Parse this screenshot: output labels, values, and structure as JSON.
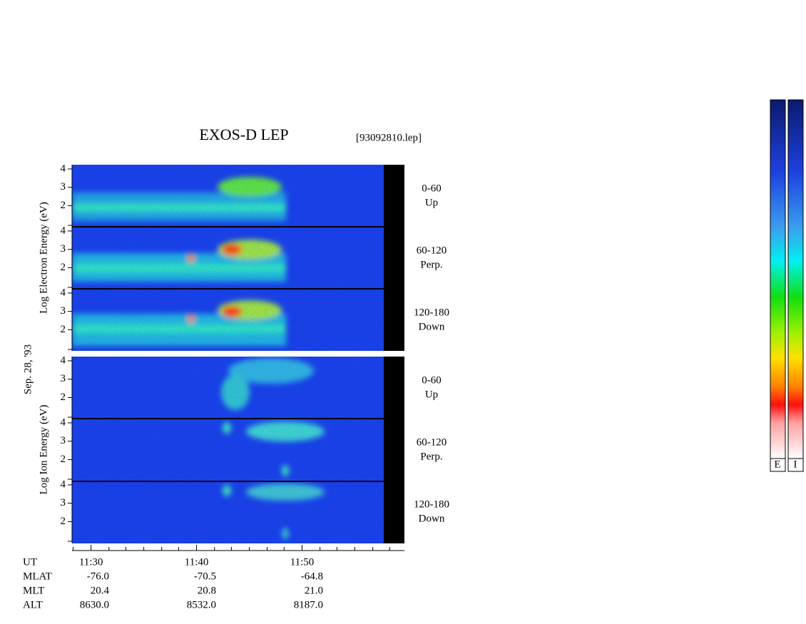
{
  "chart_data": {
    "type": "spectrogram",
    "title": "EXOS-D LEP",
    "subtitle": "[93092810.lep]",
    "date_label": "Sep. 28, '93",
    "groups": [
      {
        "ylabel": "Log  Electron  Energy (eV)",
        "panels": [
          {
            "range": "0-60",
            "direction": "Up"
          },
          {
            "range": "60-120",
            "direction": "Perp."
          },
          {
            "range": "120-180",
            "direction": "Down"
          }
        ]
      },
      {
        "ylabel": "Log  Ion  Energy (eV)",
        "panels": [
          {
            "range": "0-60",
            "direction": "Up"
          },
          {
            "range": "60-120",
            "direction": "Perp."
          },
          {
            "range": "120-180",
            "direction": "Down"
          }
        ]
      }
    ],
    "ylim": [
      0.85,
      4.23
    ],
    "yticks": [
      2,
      3,
      4
    ],
    "xlim": [
      688.2,
      719.7
    ],
    "xticks": [
      {
        "value": 690,
        "label": "11:30"
      },
      {
        "value": 700,
        "label": "11:40"
      },
      {
        "value": 710,
        "label": "11:50"
      }
    ],
    "xminorticks": [
      688.3,
      691.7,
      693.3,
      695,
      696.7,
      698.3,
      701.7,
      703.3,
      705,
      706.7,
      708.3,
      711.7,
      713.3,
      715,
      716.7,
      718.3
    ],
    "ephemeris_label": "UT",
    "ephemeris": [
      {
        "name": "MLAT",
        "values": [
          "-76.0",
          "-70.5",
          "-64.8"
        ]
      },
      {
        "name": "MLT",
        "values": [
          "20.4",
          "20.8",
          "21.0"
        ]
      },
      {
        "name": "ALT",
        "values": [
          "8630.0",
          "8532.0",
          "8187.0"
        ]
      }
    ],
    "colorbars": [
      "E",
      "I"
    ]
  }
}
